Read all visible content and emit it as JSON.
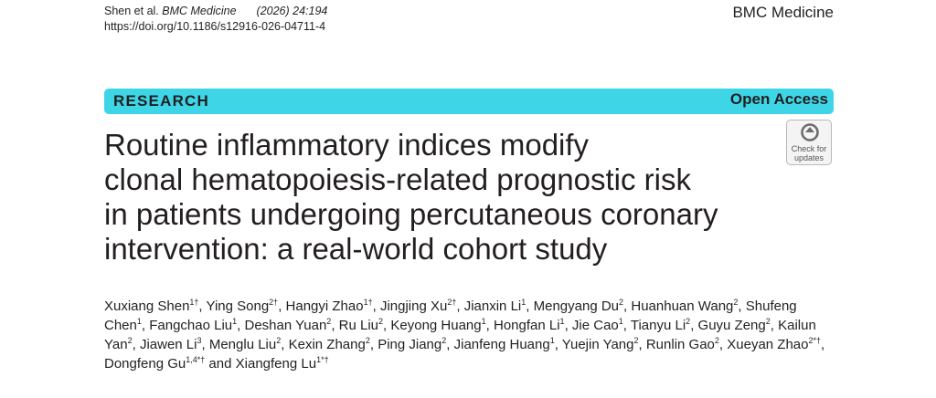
{
  "header": {
    "authors_short": "Shen et al. ",
    "journal_italic": "BMC Medicine",
    "year_volume": "(2026) 24:194",
    "doi": "https://doi.org/10.1186/s12916-026-04711-4",
    "journal_name": "BMC Medicine"
  },
  "banner": {
    "article_type": "RESEARCH",
    "access": "Open Access"
  },
  "check_updates": {
    "line1": "Check for",
    "line2": "updates"
  },
  "title": {
    "lines": [
      "Routine inflammatory indices modify",
      "clonal hematopoiesis-related prognostic risk",
      "in patients undergoing percutaneous coronary",
      "intervention: a real-world cohort study"
    ]
  },
  "authors": [
    {
      "name": "Xuxiang Shen",
      "aff": "1†",
      "sep": ", "
    },
    {
      "name": "Ying Song",
      "aff": "2†",
      "sep": ", "
    },
    {
      "name": "Hangyi Zhao",
      "aff": "1†",
      "sep": ", "
    },
    {
      "name": "Jingjing Xu",
      "aff": "2†",
      "sep": ", "
    },
    {
      "name": "Jianxin Li",
      "aff": "1",
      "sep": ", "
    },
    {
      "name": "Mengyang Du",
      "aff": "2",
      "sep": ", "
    },
    {
      "name": "Huanhuan Wang",
      "aff": "2",
      "sep": ", "
    },
    {
      "name": "Shufeng Chen",
      "aff": "1",
      "sep": ", "
    },
    {
      "name": "Fangchao Liu",
      "aff": "1",
      "sep": ", "
    },
    {
      "name": "Deshan Yuan",
      "aff": "2",
      "sep": ", "
    },
    {
      "name": "Ru Liu",
      "aff": "2",
      "sep": ", "
    },
    {
      "name": "Keyong Huang",
      "aff": "1",
      "sep": ", "
    },
    {
      "name": "Hongfan Li",
      "aff": "1",
      "sep": ", "
    },
    {
      "name": "Jie Cao",
      "aff": "1",
      "sep": ", "
    },
    {
      "name": "Tianyu Li",
      "aff": "2",
      "sep": ", "
    },
    {
      "name": "Guyu Zeng",
      "aff": "2",
      "sep": ", "
    },
    {
      "name": "Kailun Yan",
      "aff": "2",
      "sep": ", "
    },
    {
      "name": "Jiawen Li",
      "aff": "3",
      "sep": ", "
    },
    {
      "name": "Menglu Liu",
      "aff": "2",
      "sep": ", "
    },
    {
      "name": "Kexin Zhang",
      "aff": "2",
      "sep": ", "
    },
    {
      "name": "Ping Jiang",
      "aff": "2",
      "sep": ", "
    },
    {
      "name": "Jianfeng Huang",
      "aff": "1",
      "sep": ", "
    },
    {
      "name": "Yuejin Yang",
      "aff": "2",
      "sep": ", "
    },
    {
      "name": "Runlin Gao",
      "aff": "2",
      "sep": ", "
    },
    {
      "name": "Xueyan Zhao",
      "aff": "2*†",
      "sep": ", "
    },
    {
      "name": "Dongfeng Gu",
      "aff": "1,4*†",
      "sep": " and "
    },
    {
      "name": "Xiangfeng Lu",
      "aff": "1*†",
      "sep": ""
    }
  ]
}
